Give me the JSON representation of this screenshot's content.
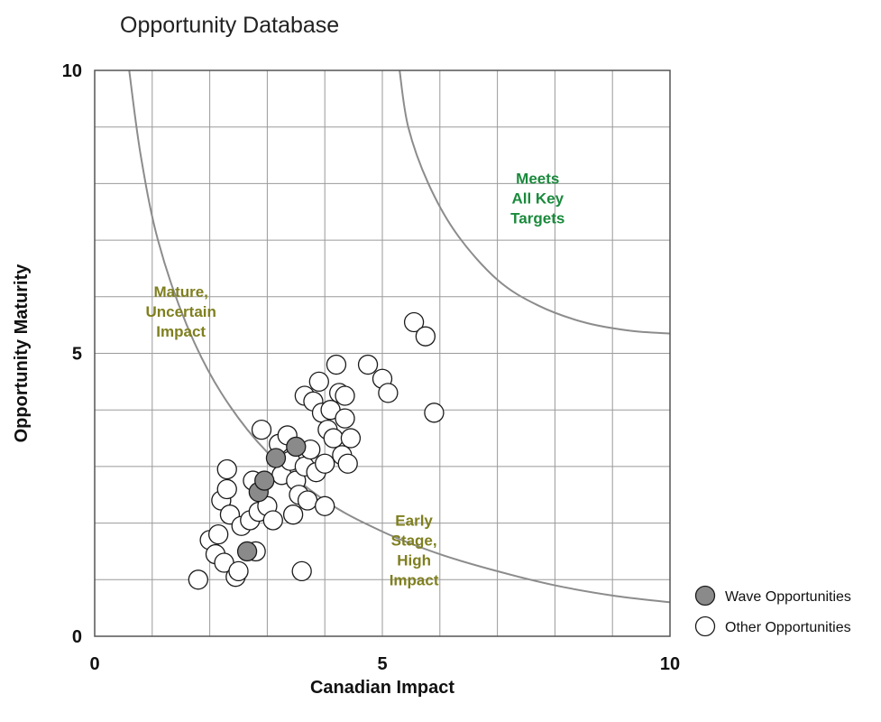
{
  "chart_data": {
    "type": "scatter",
    "title": "Opportunity Database",
    "xlabel": "Canadian Impact",
    "ylabel": "Opportunity Maturity",
    "xlim": [
      0,
      10
    ],
    "ylim": [
      0,
      10
    ],
    "x_ticks": [
      "0",
      "5",
      "10"
    ],
    "y_ticks": [
      "0",
      "5",
      "10"
    ],
    "x_tick_values": [
      0,
      5,
      10
    ],
    "y_tick_values": [
      0,
      5,
      10
    ],
    "grid": true,
    "grid_step": 1,
    "legend_position": "bottom-right",
    "colors": {
      "wave_fill": "#8a8a8a",
      "other_fill": "#ffffff",
      "marker_stroke": "#1a1a1a",
      "curve": "#8c8c8c",
      "grid": "#9a9a9a",
      "region_olive": "#7f7f1f",
      "region_green": "#1a8a3c"
    },
    "regions": [
      {
        "label": "Mature,\nUncertain\nImpact",
        "color": "#7f7f1f",
        "x": 1.5,
        "y": 6.0
      },
      {
        "label": "Early\nStage,\nHigh\nImpact",
        "color": "#7f7f1f",
        "x": 5.55,
        "y": 1.95
      },
      {
        "label": "Meets\nAll Key\nTargets",
        "color": "#1a8a3c",
        "x": 7.7,
        "y": 8.0
      }
    ],
    "curves": [
      {
        "name": "",
        "points": [
          [
            0.6,
            10
          ],
          [
            0.8,
            8.5
          ],
          [
            1.1,
            7.0
          ],
          [
            1.6,
            5.5
          ],
          [
            2.2,
            4.3
          ],
          [
            3.0,
            3.25
          ],
          [
            4.0,
            2.4
          ],
          [
            5.0,
            1.85
          ],
          [
            6.0,
            1.45
          ],
          [
            7.0,
            1.15
          ],
          [
            8.0,
            0.9
          ],
          [
            9.0,
            0.72
          ],
          [
            10.0,
            0.6
          ]
        ]
      },
      {
        "name": "",
        "points": [
          [
            5.3,
            10
          ],
          [
            5.45,
            9.0
          ],
          [
            5.8,
            8.0
          ],
          [
            6.3,
            7.1
          ],
          [
            7.0,
            6.3
          ],
          [
            7.7,
            5.85
          ],
          [
            8.5,
            5.55
          ],
          [
            9.3,
            5.4
          ],
          [
            10.0,
            5.35
          ]
        ]
      }
    ],
    "series": [
      {
        "name": "Wave Opportunities",
        "points": [
          [
            2.65,
            1.5
          ],
          [
            2.85,
            2.55
          ],
          [
            2.95,
            2.75
          ],
          [
            3.15,
            3.15
          ],
          [
            3.5,
            3.35
          ]
        ]
      },
      {
        "name": "Other Opportunities",
        "points": [
          [
            1.8,
            1.0
          ],
          [
            2.0,
            1.7
          ],
          [
            2.1,
            1.45
          ],
          [
            2.15,
            1.8
          ],
          [
            2.2,
            2.4
          ],
          [
            2.25,
            1.3
          ],
          [
            2.3,
            2.95
          ],
          [
            2.3,
            2.6
          ],
          [
            2.35,
            2.15
          ],
          [
            2.45,
            1.05
          ],
          [
            2.5,
            1.15
          ],
          [
            2.55,
            1.95
          ],
          [
            2.7,
            2.05
          ],
          [
            2.75,
            2.75
          ],
          [
            2.8,
            1.5
          ],
          [
            2.85,
            2.2
          ],
          [
            2.9,
            3.65
          ],
          [
            3.0,
            2.3
          ],
          [
            3.1,
            2.05
          ],
          [
            3.2,
            3.4
          ],
          [
            3.25,
            2.85
          ],
          [
            3.35,
            3.55
          ],
          [
            3.4,
            3.1
          ],
          [
            3.45,
            2.15
          ],
          [
            3.5,
            2.75
          ],
          [
            3.55,
            2.5
          ],
          [
            3.6,
            1.15
          ],
          [
            3.65,
            3.0
          ],
          [
            3.65,
            4.25
          ],
          [
            3.7,
            2.4
          ],
          [
            3.75,
            3.3
          ],
          [
            3.8,
            4.15
          ],
          [
            3.85,
            2.9
          ],
          [
            3.9,
            4.5
          ],
          [
            3.95,
            3.95
          ],
          [
            4.0,
            3.05
          ],
          [
            4.0,
            2.3
          ],
          [
            4.05,
            3.65
          ],
          [
            4.1,
            4.0
          ],
          [
            4.15,
            3.5
          ],
          [
            4.2,
            4.8
          ],
          [
            4.25,
            4.3
          ],
          [
            4.3,
            3.2
          ],
          [
            4.35,
            3.85
          ],
          [
            4.35,
            4.25
          ],
          [
            4.4,
            3.05
          ],
          [
            4.45,
            3.5
          ],
          [
            4.75,
            4.8
          ],
          [
            5.0,
            4.55
          ],
          [
            5.1,
            4.3
          ],
          [
            5.55,
            5.55
          ],
          [
            5.75,
            5.3
          ],
          [
            5.9,
            3.95
          ]
        ]
      }
    ],
    "legend": [
      {
        "label": "Wave Opportunities",
        "fill": "#8a8a8a"
      },
      {
        "label": "Other Opportunities",
        "fill": "#ffffff"
      }
    ]
  }
}
